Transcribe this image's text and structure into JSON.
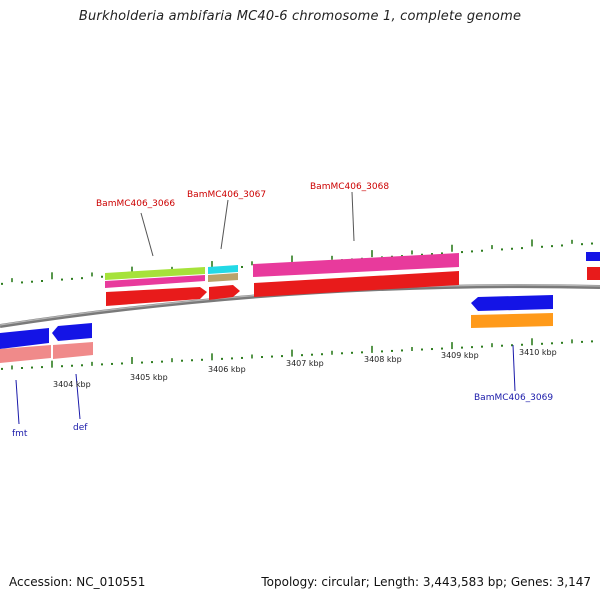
{
  "title": "Burkholderia ambifaria MC40-6 chromosome 1, complete genome",
  "footer": {
    "accession": "Accession: NC_010551",
    "summary": "Topology: circular; Length: 3,443,583 bp; Genes: 3,147"
  },
  "colors": {
    "backbone": "#8c8c8c",
    "tick": "#2e7d1f",
    "label_red": "#cc0000",
    "label_blue": "#1a1aaa",
    "leader": "#555555"
  },
  "scale_labels": [
    "3404 kbp",
    "3405 kbp",
    "3406 kbp",
    "3407 kbp",
    "3408 kbp",
    "3409 kbp",
    "3410 kbp"
  ],
  "gene_labels": [
    {
      "id": "BamMC406_3066",
      "text": "BamMC406_3066",
      "color": "#cc0000"
    },
    {
      "id": "BamMC406_3067",
      "text": "BamMC406_3067",
      "color": "#cc0000"
    },
    {
      "id": "BamMC406_3068",
      "text": "BamMC406_3068",
      "color": "#cc0000"
    },
    {
      "id": "BamMC406_3069",
      "text": "BamMC406_3069",
      "color": "#1a1aaa"
    },
    {
      "id": "fmt",
      "text": "fmt",
      "color": "#1a1aaa"
    },
    {
      "id": "def",
      "text": "def",
      "color": "#1a1aaa"
    }
  ]
}
